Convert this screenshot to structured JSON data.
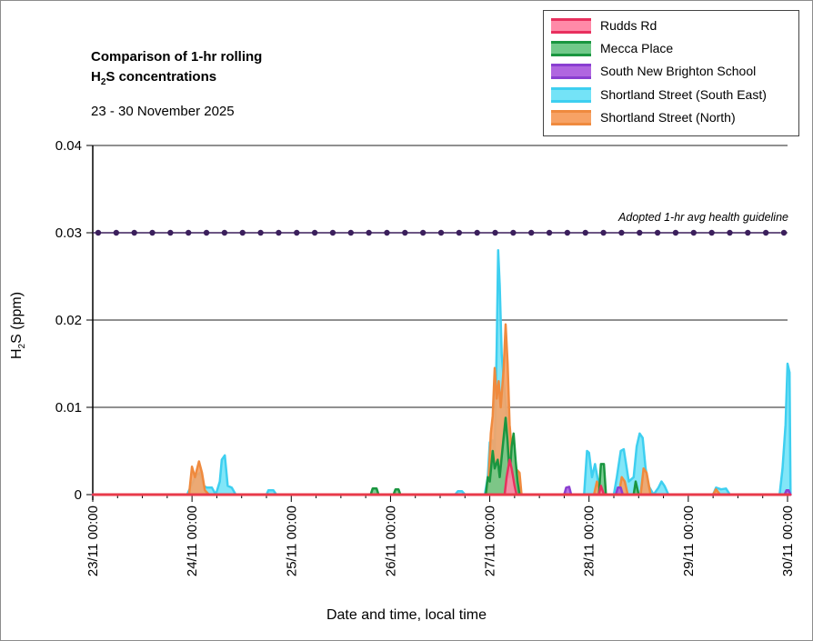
{
  "chart_data": {
    "type": "area",
    "title_line1": "Comparison of 1-hr rolling",
    "title_line2_main": "H",
    "title_line2_sub": "2",
    "title_line2_rest": "S concentrations",
    "subtitle": "23 - 30 November 2025",
    "ylabel_main": "H",
    "ylabel_sub": "2",
    "ylabel_rest": "S (ppm)",
    "xlabel": "Date and time, local time",
    "ylim": [
      0,
      0.04
    ],
    "yticks": [
      "0",
      "0.01",
      "0.02",
      "0.03",
      "0.04"
    ],
    "ytick_values": [
      0,
      0.01,
      0.02,
      0.03,
      0.04
    ],
    "xlim_days": [
      0,
      7
    ],
    "xticks": [
      "23/11 00:00",
      "24/11 00:00",
      "25/11 00:00",
      "26/11 00:00",
      "27/11 00:00",
      "28/11 00:00",
      "29/11 00:00",
      "30/11 00:00"
    ],
    "guideline": {
      "label": "Adopted 1-hr avg health guideline",
      "value": 0.03,
      "color": "#3b1f5c"
    },
    "series": [
      {
        "name": "Shortland Street (South East)",
        "fill": "#74e3f7",
        "stroke": "#3ecff0",
        "points": [
          [
            0,
            0
          ],
          [
            0.95,
            0
          ],
          [
            1.0,
            0.0012
          ],
          [
            1.04,
            0.0022
          ],
          [
            1.08,
            0.0025
          ],
          [
            1.12,
            0.001
          ],
          [
            1.15,
            0.0008
          ],
          [
            1.2,
            0.0008
          ],
          [
            1.24,
            0
          ],
          [
            1.28,
            0.0015
          ],
          [
            1.3,
            0.004
          ],
          [
            1.33,
            0.0045
          ],
          [
            1.36,
            0.001
          ],
          [
            1.4,
            0.0008
          ],
          [
            1.44,
            0
          ],
          [
            1.75,
            0
          ],
          [
            1.77,
            0.0005
          ],
          [
            1.82,
            0.0005
          ],
          [
            1.85,
            0
          ],
          [
            3.65,
            0
          ],
          [
            3.68,
            0.0004
          ],
          [
            3.72,
            0.0004
          ],
          [
            3.75,
            0
          ],
          [
            3.95,
            0
          ],
          [
            3.98,
            0.002
          ],
          [
            4.0,
            0.006
          ],
          [
            4.03,
            0.0062
          ],
          [
            4.05,
            0.005
          ],
          [
            4.07,
            0.017
          ],
          [
            4.085,
            0.028
          ],
          [
            4.1,
            0.024
          ],
          [
            4.12,
            0.016
          ],
          [
            4.15,
            0.012
          ],
          [
            4.18,
            0.0075
          ],
          [
            4.2,
            0.004
          ],
          [
            4.23,
            0.003
          ],
          [
            4.28,
            0.002
          ],
          [
            4.3,
            0
          ],
          [
            4.95,
            0
          ],
          [
            4.98,
            0.005
          ],
          [
            5.0,
            0.0048
          ],
          [
            5.03,
            0.002
          ],
          [
            5.06,
            0.0035
          ],
          [
            5.1,
            0.001
          ],
          [
            5.15,
            0
          ],
          [
            5.25,
            0
          ],
          [
            5.28,
            0.002
          ],
          [
            5.32,
            0.005
          ],
          [
            5.35,
            0.0052
          ],
          [
            5.38,
            0.003
          ],
          [
            5.4,
            0.0015
          ],
          [
            5.45,
            0.002
          ],
          [
            5.48,
            0.0055
          ],
          [
            5.51,
            0.007
          ],
          [
            5.54,
            0.0065
          ],
          [
            5.57,
            0.003
          ],
          [
            5.6,
            0.001
          ],
          [
            5.65,
            0
          ],
          [
            5.7,
            0.0008
          ],
          [
            5.73,
            0.0015
          ],
          [
            5.76,
            0.001
          ],
          [
            5.8,
            0
          ],
          [
            6.25,
            0
          ],
          [
            6.28,
            0.0008
          ],
          [
            6.33,
            0.0006
          ],
          [
            6.38,
            0.0007
          ],
          [
            6.42,
            0
          ],
          [
            6.92,
            0
          ],
          [
            6.95,
            0.003
          ],
          [
            6.98,
            0.008
          ],
          [
            7.0,
            0.015
          ],
          [
            7.02,
            0.014
          ],
          [
            7.03,
            0
          ]
        ]
      },
      {
        "name": "Shortland Street (North)",
        "fill": "#f7a265",
        "stroke": "#ef8a3e",
        "points": [
          [
            0,
            0
          ],
          [
            0.97,
            0
          ],
          [
            1.0,
            0.0032
          ],
          [
            1.03,
            0.002
          ],
          [
            1.07,
            0.0038
          ],
          [
            1.1,
            0.0025
          ],
          [
            1.13,
            0.0005
          ],
          [
            1.17,
            0
          ],
          [
            3.98,
            0
          ],
          [
            4.01,
            0.007
          ],
          [
            4.03,
            0.009
          ],
          [
            4.05,
            0.0145
          ],
          [
            4.07,
            0.011
          ],
          [
            4.09,
            0.013
          ],
          [
            4.11,
            0.01
          ],
          [
            4.14,
            0.0145
          ],
          [
            4.16,
            0.0195
          ],
          [
            4.18,
            0.015
          ],
          [
            4.2,
            0.008
          ],
          [
            4.23,
            0.004
          ],
          [
            4.26,
            0.003
          ],
          [
            4.3,
            0.0025
          ],
          [
            4.32,
            0
          ],
          [
            5.05,
            0
          ],
          [
            5.08,
            0.0015
          ],
          [
            5.11,
            0.0005
          ],
          [
            5.15,
            0
          ],
          [
            5.3,
            0
          ],
          [
            5.33,
            0.002
          ],
          [
            5.36,
            0.0015
          ],
          [
            5.39,
            0
          ],
          [
            5.52,
            0
          ],
          [
            5.55,
            0.003
          ],
          [
            5.58,
            0.0025
          ],
          [
            5.62,
            0
          ],
          [
            6.25,
            0
          ],
          [
            6.28,
            0.0006
          ],
          [
            6.32,
            0
          ],
          [
            7.03,
            0
          ]
        ]
      },
      {
        "name": "Mecca Place",
        "fill": "#71c98a",
        "stroke": "#1a9640",
        "points": [
          [
            0,
            0
          ],
          [
            2.8,
            0
          ],
          [
            2.82,
            0.0007
          ],
          [
            2.86,
            0.0007
          ],
          [
            2.88,
            0
          ],
          [
            3.03,
            0
          ],
          [
            3.05,
            0.0006
          ],
          [
            3.08,
            0.0006
          ],
          [
            3.1,
            0
          ],
          [
            3.96,
            0
          ],
          [
            3.98,
            0.002
          ],
          [
            4.0,
            0.0015
          ],
          [
            4.03,
            0.005
          ],
          [
            4.05,
            0.003
          ],
          [
            4.08,
            0.004
          ],
          [
            4.1,
            0.002
          ],
          [
            4.13,
            0.0055
          ],
          [
            4.16,
            0.0088
          ],
          [
            4.18,
            0.006
          ],
          [
            4.2,
            0.002
          ],
          [
            4.22,
            0.0055
          ],
          [
            4.24,
            0.007
          ],
          [
            4.26,
            0.004
          ],
          [
            4.28,
            0.0015
          ],
          [
            4.3,
            0
          ],
          [
            5.1,
            0
          ],
          [
            5.12,
            0.0035
          ],
          [
            5.15,
            0.0035
          ],
          [
            5.17,
            0
          ],
          [
            5.45,
            0
          ],
          [
            5.47,
            0.0015
          ],
          [
            5.5,
            0
          ],
          [
            7.03,
            0
          ]
        ]
      },
      {
        "name": "South New Brighton School",
        "fill": "#b066e0",
        "stroke": "#8a3fd1",
        "points": [
          [
            0,
            0
          ],
          [
            4.75,
            0
          ],
          [
            4.77,
            0.0008
          ],
          [
            4.8,
            0.0009
          ],
          [
            4.82,
            0
          ],
          [
            5.27,
            0
          ],
          [
            5.29,
            0.0008
          ],
          [
            5.32,
            0.0008
          ],
          [
            5.34,
            0
          ],
          [
            6.97,
            0
          ],
          [
            6.99,
            0.0005
          ],
          [
            7.01,
            0.0005
          ],
          [
            7.03,
            0
          ]
        ]
      },
      {
        "name": "Rudds Rd",
        "fill": "#ff8aa8",
        "stroke": "#e8305e",
        "points": [
          [
            0,
            0
          ],
          [
            4.15,
            0
          ],
          [
            4.17,
            0.002
          ],
          [
            4.2,
            0.004
          ],
          [
            4.22,
            0.003
          ],
          [
            4.25,
            0.001
          ],
          [
            4.27,
            0
          ],
          [
            5.1,
            0
          ],
          [
            5.12,
            0.001
          ],
          [
            5.15,
            0
          ],
          [
            7.03,
            0
          ]
        ]
      }
    ]
  },
  "legend": {
    "items": [
      {
        "label": "Rudds Rd",
        "fill": "#ff8aa8",
        "stroke": "#e8305e"
      },
      {
        "label": "Mecca Place",
        "fill": "#71c98a",
        "stroke": "#1a9640"
      },
      {
        "label": "South New Brighton School",
        "fill": "#b066e0",
        "stroke": "#8a3fd1"
      },
      {
        "label": "Shortland Street (South East)",
        "fill": "#74e3f7",
        "stroke": "#3ecff0"
      },
      {
        "label": "Shortland Street (North)",
        "fill": "#f7a265",
        "stroke": "#ef8a3e"
      }
    ]
  },
  "baseline_color": "#e83a4a"
}
